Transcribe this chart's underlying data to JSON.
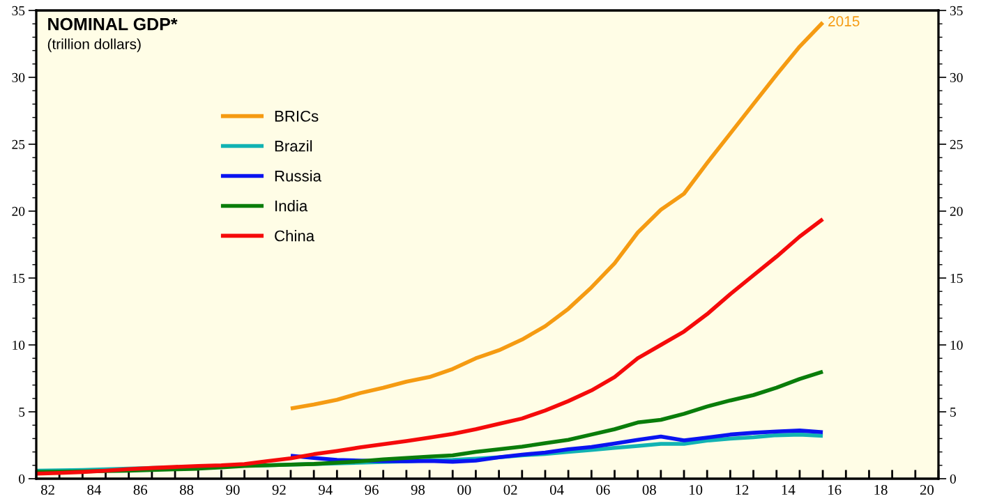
{
  "chart_data": {
    "type": "line",
    "title": "NOMINAL GDP*",
    "subtitle": "(trillion dollars)",
    "x": [
      1981.5,
      1982.5,
      1983.5,
      1984.5,
      1985.5,
      1986.5,
      1987.5,
      1988.5,
      1989.5,
      1990.5,
      1991.5,
      1992.5,
      1993.5,
      1994.5,
      1995.5,
      1996.5,
      1997.5,
      1998.5,
      1999.5,
      2000.5,
      2001.5,
      2002.5,
      2003.5,
      2004.5,
      2005.5,
      2006.5,
      2007.5,
      2008.5,
      2009.5,
      2010.5,
      2011.5,
      2012.5,
      2013.5,
      2014.5,
      2015.5
    ],
    "series": [
      {
        "name": "BRICs",
        "color": "#f59b12",
        "values": [
          null,
          null,
          null,
          null,
          null,
          null,
          null,
          null,
          null,
          null,
          null,
          5.25,
          5.55,
          5.9,
          6.4,
          6.8,
          7.25,
          7.6,
          8.2,
          9.0,
          9.6,
          10.4,
          11.4,
          12.7,
          14.3,
          16.1,
          18.4,
          20.1,
          21.3,
          23.6,
          25.8,
          28.0,
          30.2,
          32.3,
          34.1
        ]
      },
      {
        "name": "Brazil",
        "color": "#12b3b3",
        "values": [
          0.6,
          0.62,
          0.65,
          0.7,
          0.75,
          0.8,
          0.85,
          0.9,
          0.95,
          0.98,
          1.0,
          1.05,
          1.1,
          1.15,
          1.2,
          1.25,
          1.3,
          1.35,
          1.4,
          1.5,
          1.6,
          1.75,
          1.85,
          2.0,
          2.15,
          2.3,
          2.45,
          2.6,
          2.6,
          2.85,
          3.0,
          3.1,
          3.25,
          3.3,
          3.2
        ]
      },
      {
        "name": "Russia",
        "color": "#0a14f0",
        "values": [
          null,
          null,
          null,
          null,
          null,
          null,
          null,
          null,
          null,
          null,
          null,
          1.72,
          1.55,
          1.4,
          1.35,
          1.32,
          1.3,
          1.33,
          1.27,
          1.35,
          1.6,
          1.8,
          1.95,
          2.2,
          2.37,
          2.63,
          2.9,
          3.15,
          2.87,
          3.07,
          3.3,
          3.43,
          3.53,
          3.6,
          3.48
        ]
      },
      {
        "name": "India",
        "color": "#0a7d0a",
        "values": [
          0.5,
          0.52,
          0.55,
          0.58,
          0.6,
          0.65,
          0.7,
          0.75,
          0.85,
          0.95,
          1.0,
          1.05,
          1.1,
          1.2,
          1.3,
          1.45,
          1.55,
          1.65,
          1.75,
          2.0,
          2.2,
          2.4,
          2.65,
          2.9,
          3.3,
          3.7,
          4.2,
          4.4,
          4.85,
          5.4,
          5.85,
          6.25,
          6.8,
          7.45,
          8.0
        ]
      },
      {
        "name": "China",
        "color": "#f50a0a",
        "values": [
          0.38,
          0.43,
          0.5,
          0.6,
          0.72,
          0.8,
          0.88,
          0.95,
          1.0,
          1.09,
          1.32,
          1.52,
          1.83,
          2.07,
          2.34,
          2.58,
          2.81,
          3.07,
          3.35,
          3.7,
          4.1,
          4.5,
          5.1,
          5.8,
          6.6,
          7.6,
          9.0,
          10.0,
          11.0,
          12.3,
          13.8,
          15.2,
          16.6,
          18.1,
          19.4
        ]
      }
    ],
    "annotations": [
      {
        "text": "2015",
        "x": 2015.5,
        "y": 34.1
      }
    ],
    "xlim": [
      1981.5,
      2020.5
    ],
    "xticks": [
      {
        "value": 1982,
        "label": "82"
      },
      {
        "value": 1984,
        "label": "84"
      },
      {
        "value": 1986,
        "label": "86"
      },
      {
        "value": 1988,
        "label": "88"
      },
      {
        "value": 1990,
        "label": "90"
      },
      {
        "value": 1992,
        "label": "92"
      },
      {
        "value": 1994,
        "label": "94"
      },
      {
        "value": 1996,
        "label": "96"
      },
      {
        "value": 1998,
        "label": "98"
      },
      {
        "value": 2000,
        "label": "00"
      },
      {
        "value": 2002,
        "label": "02"
      },
      {
        "value": 2004,
        "label": "04"
      },
      {
        "value": 2006,
        "label": "06"
      },
      {
        "value": 2008,
        "label": "08"
      },
      {
        "value": 2010,
        "label": "10"
      },
      {
        "value": 2012,
        "label": "12"
      },
      {
        "value": 2014,
        "label": "14"
      },
      {
        "value": 2016,
        "label": "16"
      },
      {
        "value": 2018,
        "label": "18"
      },
      {
        "value": 2020,
        "label": "20"
      },
      {
        "value": 1981.5,
        "label": null
      },
      {
        "value": 1982.5,
        "label": null
      },
      {
        "value": 1983.5,
        "label": null
      },
      {
        "value": 1984.5,
        "label": null
      },
      {
        "value": 1985.5,
        "label": null
      },
      {
        "value": 1986.5,
        "label": null
      },
      {
        "value": 1987.5,
        "label": null
      },
      {
        "value": 1988.5,
        "label": null
      },
      {
        "value": 1989.5,
        "label": null
      },
      {
        "value": 1990.5,
        "label": null
      },
      {
        "value": 1991.5,
        "label": null
      },
      {
        "value": 1992.5,
        "label": null
      },
      {
        "value": 1993.5,
        "label": null
      },
      {
        "value": 1994.5,
        "label": null
      },
      {
        "value": 1995.5,
        "label": null
      },
      {
        "value": 1996.5,
        "label": null
      },
      {
        "value": 1997.5,
        "label": null
      },
      {
        "value": 1998.5,
        "label": null
      },
      {
        "value": 1999.5,
        "label": null
      },
      {
        "value": 2000.5,
        "label": null
      },
      {
        "value": 2001.5,
        "label": null
      },
      {
        "value": 2002.5,
        "label": null
      },
      {
        "value": 2003.5,
        "label": null
      },
      {
        "value": 2004.5,
        "label": null
      },
      {
        "value": 2005.5,
        "label": null
      },
      {
        "value": 2006.5,
        "label": null
      },
      {
        "value": 2007.5,
        "label": null
      },
      {
        "value": 2008.5,
        "label": null
      },
      {
        "value": 2009.5,
        "label": null
      },
      {
        "value": 2010.5,
        "label": null
      },
      {
        "value": 2011.5,
        "label": null
      },
      {
        "value": 2012.5,
        "label": null
      },
      {
        "value": 2013.5,
        "label": null
      },
      {
        "value": 2014.5,
        "label": null
      },
      {
        "value": 2015.5,
        "label": null
      },
      {
        "value": 2016.5,
        "label": null
      },
      {
        "value": 2017.5,
        "label": null
      },
      {
        "value": 2018.5,
        "label": null
      },
      {
        "value": 2019.5,
        "label": null
      },
      {
        "value": 2020.5,
        "label": null
      }
    ],
    "ylim": [
      0,
      35
    ],
    "yticks": [
      0,
      5,
      10,
      15,
      20,
      25,
      30,
      35
    ],
    "y2lim": [
      0,
      35
    ],
    "y2ticks": [
      0,
      5,
      10,
      15,
      20,
      25,
      30,
      35
    ],
    "legend": "top left",
    "grid": false,
    "marker": "none",
    "line_style": "solid"
  }
}
